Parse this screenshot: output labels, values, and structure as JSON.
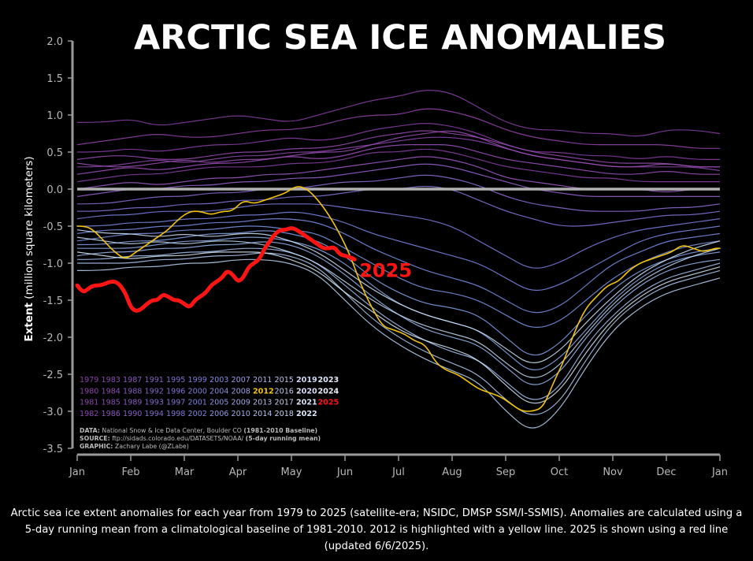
{
  "chart_data": {
    "type": "line",
    "title": "ARCTIC SEA ICE ANOMALIES",
    "ylabel_bold": "Extent",
    "ylabel_rest": "(million square kilometers)",
    "xlabel": "",
    "ylim": [
      -3.5,
      2.0
    ],
    "yticks": [
      "2.0",
      "1.5",
      "1.0",
      "0.5",
      "0.0",
      "-0.5",
      "-1.0",
      "-1.5",
      "-2.0",
      "-2.5",
      "-3.0",
      "-3.5"
    ],
    "x_tick_labels": [
      "Jan",
      "Feb",
      "Mar",
      "Apr",
      "May",
      "Jun",
      "Jul",
      "Aug",
      "Sep",
      "Oct",
      "Nov",
      "Dec",
      "Jan"
    ],
    "zero_line": true,
    "grid": false,
    "colors": {
      "background": "#000000",
      "zero_line": "#b0b0b0",
      "highlight_2012": "#f1c40f",
      "highlight_2025": "#ff1414",
      "early_years": "#8a3fa6",
      "mid_years": "#7f84e0",
      "late_years": "#c5e2f2"
    },
    "legend": {
      "placement": "bottom-left",
      "rows": [
        [
          "1979",
          "1983",
          "1987",
          "1991",
          "1995",
          "1999",
          "2003",
          "2007",
          "2011",
          "2015",
          "2019",
          "2023"
        ],
        [
          "1980",
          "1984",
          "1988",
          "1992",
          "1996",
          "2000",
          "2004",
          "2008",
          "2012",
          "2016",
          "2020",
          "2024"
        ],
        [
          "1981",
          "1985",
          "1989",
          "1993",
          "1997",
          "2001",
          "2005",
          "2009",
          "2013",
          "2017",
          "2021",
          "2025"
        ],
        [
          "1982",
          "1986",
          "1990",
          "1994",
          "1998",
          "2002",
          "2006",
          "2010",
          "2014",
          "2018",
          "2022"
        ]
      ]
    },
    "series_highlight": [
      {
        "name": "2012",
        "color": "#f1c40f",
        "x_month": [
          0.0,
          0.15,
          0.3,
          0.5,
          0.7,
          0.9,
          1.1,
          1.3,
          1.5,
          1.7,
          1.9,
          2.1,
          2.3,
          2.5,
          2.7,
          2.9,
          3.1,
          3.3,
          3.5,
          3.7,
          3.9,
          4.1,
          4.3,
          4.5,
          4.7,
          4.9,
          5.1,
          5.3,
          5.5,
          5.7,
          5.9,
          6.1,
          6.3,
          6.5,
          6.7,
          6.9,
          7.1,
          7.3,
          7.5,
          7.7,
          7.9,
          8.1,
          8.3,
          8.5,
          8.7,
          8.9,
          9.1,
          9.3,
          9.5,
          9.7,
          9.9,
          10.1,
          10.3,
          10.5,
          10.7,
          10.9,
          11.1,
          11.3,
          11.5,
          11.7,
          11.9,
          12.0
        ],
        "values": [
          -0.5,
          -0.5,
          -0.55,
          -0.7,
          -0.85,
          -0.95,
          -0.85,
          -0.75,
          -0.65,
          -0.55,
          -0.4,
          -0.3,
          -0.3,
          -0.35,
          -0.3,
          -0.3,
          -0.15,
          -0.2,
          -0.15,
          -0.1,
          -0.05,
          0.05,
          0.0,
          -0.15,
          -0.35,
          -0.6,
          -0.9,
          -1.3,
          -1.6,
          -1.85,
          -1.9,
          -1.95,
          -2.05,
          -2.1,
          -2.35,
          -2.45,
          -2.5,
          -2.6,
          -2.7,
          -2.75,
          -2.8,
          -2.9,
          -3.0,
          -3.0,
          -2.95,
          -2.6,
          -2.3,
          -1.9,
          -1.6,
          -1.45,
          -1.3,
          -1.25,
          -1.1,
          -1.0,
          -0.95,
          -0.9,
          -0.85,
          -0.75,
          -0.8,
          -0.85,
          -0.8,
          -0.8
        ]
      },
      {
        "name": "2025",
        "label": "2025",
        "color": "#ff1414",
        "x_month": [
          0.0,
          0.1,
          0.2,
          0.3,
          0.45,
          0.6,
          0.75,
          0.9,
          1.0,
          1.1,
          1.2,
          1.3,
          1.4,
          1.5,
          1.6,
          1.7,
          1.8,
          1.9,
          2.0,
          2.1,
          2.2,
          2.3,
          2.4,
          2.5,
          2.6,
          2.7,
          2.8,
          2.9,
          3.0,
          3.1,
          3.2,
          3.3,
          3.4,
          3.5,
          3.6,
          3.7,
          3.8,
          3.9,
          4.0,
          4.1,
          4.2,
          4.3,
          4.4,
          4.5,
          4.6,
          4.7,
          4.8,
          4.9,
          5.0,
          5.1,
          5.18
        ],
        "values": [
          -1.3,
          -1.4,
          -1.35,
          -1.3,
          -1.3,
          -1.25,
          -1.25,
          -1.4,
          -1.6,
          -1.65,
          -1.62,
          -1.55,
          -1.5,
          -1.5,
          -1.42,
          -1.45,
          -1.5,
          -1.5,
          -1.55,
          -1.6,
          -1.5,
          -1.45,
          -1.4,
          -1.3,
          -1.25,
          -1.2,
          -1.1,
          -1.15,
          -1.25,
          -1.2,
          -1.05,
          -1.0,
          -0.95,
          -0.8,
          -0.7,
          -0.6,
          -0.55,
          -0.55,
          -0.52,
          -0.55,
          -0.6,
          -0.65,
          -0.7,
          -0.75,
          -0.8,
          -0.8,
          -0.78,
          -0.88,
          -0.9,
          -0.92,
          -0.95
        ]
      }
    ],
    "background_series_description_note": "",
    "background_series": [
      {
        "color": "#8a3fa6",
        "values": [
          0.9,
          0.9,
          0.95,
          0.85,
          0.9,
          0.95,
          1.0,
          0.95,
          0.9,
          1.0,
          1.1,
          1.2,
          1.25,
          1.35,
          1.3,
          1.1,
          0.9,
          0.8,
          0.8,
          0.75,
          0.75,
          0.7,
          0.8,
          0.8,
          0.75
        ]
      },
      {
        "color": "#9645ad",
        "values": [
          0.6,
          0.65,
          0.7,
          0.75,
          0.7,
          0.7,
          0.75,
          0.8,
          0.8,
          0.85,
          0.95,
          1.0,
          1.0,
          1.1,
          1.05,
          0.95,
          0.8,
          0.7,
          0.65,
          0.6,
          0.6,
          0.6,
          0.6,
          0.55,
          0.55
        ]
      },
      {
        "color": "#8a3fa6",
        "values": [
          0.5,
          0.5,
          0.55,
          0.5,
          0.55,
          0.6,
          0.6,
          0.65,
          0.7,
          0.65,
          0.7,
          0.8,
          0.85,
          0.9,
          0.85,
          0.75,
          0.6,
          0.5,
          0.5,
          0.45,
          0.45,
          0.4,
          0.45,
          0.4,
          0.4
        ]
      },
      {
        "color": "#9b4fb5",
        "values": [
          0.4,
          0.45,
          0.45,
          0.4,
          0.4,
          0.45,
          0.5,
          0.5,
          0.55,
          0.55,
          0.6,
          0.7,
          0.75,
          0.8,
          0.75,
          0.7,
          0.6,
          0.5,
          0.45,
          0.4,
          0.35,
          0.35,
          0.35,
          0.3,
          0.3
        ]
      },
      {
        "color": "#8f48b0",
        "values": [
          0.3,
          0.3,
          0.35,
          0.4,
          0.35,
          0.4,
          0.45,
          0.45,
          0.5,
          0.5,
          0.55,
          0.6,
          0.65,
          0.7,
          0.7,
          0.65,
          0.55,
          0.45,
          0.4,
          0.35,
          0.3,
          0.3,
          0.3,
          0.3,
          0.25
        ]
      },
      {
        "color": "#a052c0",
        "values": [
          0.2,
          0.25,
          0.3,
          0.25,
          0.3,
          0.35,
          0.35,
          0.4,
          0.45,
          0.4,
          0.45,
          0.55,
          0.6,
          0.6,
          0.6,
          0.5,
          0.4,
          0.35,
          0.3,
          0.25,
          0.2,
          0.2,
          0.25,
          0.2,
          0.2
        ]
      },
      {
        "color": "#8a3fa6",
        "values": [
          0.1,
          0.15,
          0.2,
          0.2,
          0.25,
          0.3,
          0.3,
          0.3,
          0.35,
          0.35,
          0.4,
          0.5,
          0.5,
          0.55,
          0.5,
          0.4,
          0.3,
          0.25,
          0.2,
          0.15,
          0.15,
          0.1,
          0.1,
          0.1,
          0.1
        ]
      },
      {
        "color": "#9b4fb5",
        "values": [
          0.35,
          0.3,
          0.3,
          0.35,
          0.4,
          0.35,
          0.4,
          0.4,
          0.45,
          0.5,
          0.5,
          0.6,
          0.7,
          0.75,
          0.8,
          0.7,
          0.55,
          0.45,
          0.4,
          0.35,
          0.3,
          0.3,
          0.35,
          0.3,
          0.3
        ]
      },
      {
        "color": "#a25ac8",
        "values": [
          0.0,
          0.05,
          0.1,
          0.05,
          0.1,
          0.15,
          0.15,
          0.2,
          0.2,
          0.25,
          0.3,
          0.35,
          0.4,
          0.45,
          0.4,
          0.3,
          0.15,
          0.1,
          0.05,
          0.0,
          0.0,
          0.0,
          -0.05,
          0.0,
          0.0
        ]
      },
      {
        "color": "#9a64d2",
        "values": [
          -0.1,
          -0.05,
          0.0,
          0.0,
          0.05,
          0.05,
          0.1,
          0.1,
          0.15,
          0.15,
          0.2,
          0.25,
          0.3,
          0.35,
          0.3,
          0.2,
          0.1,
          0.0,
          -0.05,
          -0.1,
          -0.1,
          -0.1,
          -0.1,
          -0.1,
          -0.1
        ]
      },
      {
        "color": "#8f6ed8",
        "values": [
          -0.2,
          -0.2,
          -0.15,
          -0.1,
          -0.1,
          -0.05,
          -0.05,
          0.0,
          0.0,
          0.05,
          0.1,
          0.1,
          0.15,
          0.2,
          0.15,
          0.05,
          -0.1,
          -0.2,
          -0.25,
          -0.3,
          -0.3,
          -0.3,
          -0.25,
          -0.25,
          -0.2
        ]
      },
      {
        "color": "#8478dc",
        "values": [
          -0.3,
          -0.3,
          -0.25,
          -0.25,
          -0.2,
          -0.2,
          -0.15,
          -0.15,
          -0.1,
          -0.1,
          -0.05,
          0.0,
          0.0,
          0.05,
          0.0,
          -0.15,
          -0.3,
          -0.4,
          -0.5,
          -0.5,
          -0.45,
          -0.4,
          -0.35,
          -0.35,
          -0.3
        ]
      },
      {
        "color": "#7d80e0",
        "values": [
          -0.4,
          -0.35,
          -0.35,
          -0.3,
          -0.3,
          -0.3,
          -0.25,
          -0.2,
          -0.2,
          -0.2,
          -0.25,
          -0.3,
          -0.35,
          -0.4,
          -0.5,
          -0.7,
          -0.9,
          -1.1,
          -1.0,
          -0.8,
          -0.65,
          -0.55,
          -0.5,
          -0.45,
          -0.4
        ]
      },
      {
        "color": "#7d88e4",
        "values": [
          -0.5,
          -0.5,
          -0.45,
          -0.45,
          -0.4,
          -0.4,
          -0.35,
          -0.35,
          -0.3,
          -0.35,
          -0.45,
          -0.6,
          -0.7,
          -0.8,
          -0.9,
          -1.0,
          -1.2,
          -1.4,
          -1.3,
          -1.1,
          -0.9,
          -0.7,
          -0.6,
          -0.55,
          -0.5
        ]
      },
      {
        "color": "#7a90e6",
        "values": [
          -0.6,
          -0.55,
          -0.55,
          -0.5,
          -0.5,
          -0.45,
          -0.45,
          -0.4,
          -0.4,
          -0.45,
          -0.6,
          -0.8,
          -0.95,
          -1.1,
          -1.2,
          -1.3,
          -1.5,
          -1.7,
          -1.6,
          -1.3,
          -1.0,
          -0.85,
          -0.7,
          -0.65,
          -0.6
        ]
      },
      {
        "color": "#7f98e8",
        "values": [
          -0.7,
          -0.65,
          -0.6,
          -0.6,
          -0.55,
          -0.55,
          -0.5,
          -0.5,
          -0.55,
          -0.6,
          -0.8,
          -1.0,
          -1.2,
          -1.35,
          -1.4,
          -1.5,
          -1.7,
          -1.9,
          -1.8,
          -1.5,
          -1.2,
          -1.0,
          -0.85,
          -0.75,
          -0.7
        ]
      },
      {
        "color": "#86a4ea",
        "values": [
          -0.75,
          -0.75,
          -0.7,
          -0.7,
          -0.65,
          -0.6,
          -0.6,
          -0.55,
          -0.6,
          -0.7,
          -0.9,
          -1.2,
          -1.4,
          -1.55,
          -1.6,
          -1.7,
          -2.0,
          -2.3,
          -2.1,
          -1.7,
          -1.35,
          -1.1,
          -0.95,
          -0.85,
          -0.8
        ]
      },
      {
        "color": "#8eaeec",
        "values": [
          -0.8,
          -0.8,
          -0.8,
          -0.75,
          -0.7,
          -0.7,
          -0.65,
          -0.65,
          -0.7,
          -0.8,
          -1.0,
          -1.3,
          -1.55,
          -1.7,
          -1.8,
          -1.9,
          -2.2,
          -2.5,
          -2.3,
          -1.9,
          -1.5,
          -1.2,
          -1.0,
          -0.9,
          -0.85
        ]
      },
      {
        "color": "#9ab8ee",
        "values": [
          -0.9,
          -0.85,
          -0.85,
          -0.8,
          -0.8,
          -0.75,
          -0.75,
          -0.7,
          -0.75,
          -0.9,
          -1.15,
          -1.45,
          -1.7,
          -1.9,
          -2.0,
          -2.1,
          -2.4,
          -2.7,
          -2.5,
          -2.0,
          -1.6,
          -1.3,
          -1.1,
          -1.0,
          -0.95
        ]
      },
      {
        "color": "#a6c2f0",
        "values": [
          -0.95,
          -0.95,
          -0.9,
          -0.9,
          -0.85,
          -0.85,
          -0.8,
          -0.8,
          -0.85,
          -1.0,
          -1.3,
          -1.6,
          -1.85,
          -2.05,
          -2.2,
          -2.3,
          -2.6,
          -2.9,
          -2.7,
          -2.1,
          -1.7,
          -1.4,
          -1.2,
          -1.1,
          -1.0
        ]
      },
      {
        "color": "#b2cbf2",
        "values": [
          -1.0,
          -1.0,
          -1.0,
          -0.95,
          -0.95,
          -0.9,
          -0.9,
          -0.85,
          -0.9,
          -1.05,
          -1.4,
          -1.75,
          -2.0,
          -2.2,
          -2.35,
          -2.5,
          -2.85,
          -3.1,
          -2.9,
          -2.3,
          -1.8,
          -1.5,
          -1.3,
          -1.2,
          -1.1
        ]
      },
      {
        "color": "#bcd5f4",
        "values": [
          -1.1,
          -1.1,
          -1.05,
          -1.05,
          -1.0,
          -1.0,
          -0.95,
          -0.95,
          -1.0,
          -1.15,
          -1.5,
          -1.85,
          -2.1,
          -2.3,
          -2.45,
          -2.6,
          -3.0,
          -3.3,
          -3.0,
          -2.4,
          -1.9,
          -1.6,
          -1.4,
          -1.3,
          -1.2
        ]
      },
      {
        "color": "#c6def6",
        "values": [
          -0.65,
          -0.7,
          -0.75,
          -0.7,
          -0.75,
          -0.7,
          -0.7,
          -0.75,
          -0.85,
          -1.0,
          -1.25,
          -1.5,
          -1.7,
          -1.85,
          -1.95,
          -2.05,
          -2.35,
          -2.6,
          -2.4,
          -1.95,
          -1.55,
          -1.25,
          -1.05,
          -0.9,
          -0.8
        ]
      },
      {
        "color": "#d0e6f8",
        "values": [
          -0.55,
          -0.6,
          -0.6,
          -0.65,
          -0.6,
          -0.65,
          -0.6,
          -0.6,
          -0.7,
          -0.85,
          -1.1,
          -1.35,
          -1.55,
          -1.7,
          -1.8,
          -1.9,
          -2.15,
          -2.4,
          -2.2,
          -1.8,
          -1.45,
          -1.15,
          -0.95,
          -0.8,
          -0.7
        ]
      },
      {
        "color": "#d8ecfa",
        "values": [
          -0.85,
          -0.9,
          -0.95,
          -0.9,
          -0.9,
          -0.85,
          -0.85,
          -0.85,
          -0.95,
          -1.1,
          -1.4,
          -1.65,
          -1.9,
          -2.05,
          -2.15,
          -2.3,
          -2.65,
          -2.95,
          -2.75,
          -2.2,
          -1.75,
          -1.45,
          -1.25,
          -1.15,
          -1.05
        ]
      }
    ],
    "notes": [
      {
        "bold": "DATA:",
        "text": " National Snow & Ice Data Center, Boulder CO ",
        "bold2": "(1981-2010 Baseline)"
      },
      {
        "bold": "SOURCE:",
        "text": " ftp://sidads.colorado.edu/DATASETS/NOAA/ ",
        "bold2": "(5-day running mean)"
      },
      {
        "bold": "GRAPHIC:",
        "text": " Zachary Labe (@ZLabe)",
        "bold2": ""
      }
    ]
  },
  "caption": "Arctic sea ice extent anomalies for each year from 1979 to 2025 (satellite-era; NSIDC, DMSP SSM/I-SSMIS). Anomalies are calculated using a 5-day running mean from a climatological baseline of 1981-2010. 2012 is highlighted with a yellow line. 2025 is shown using a red line (updated 6/6/2025)."
}
